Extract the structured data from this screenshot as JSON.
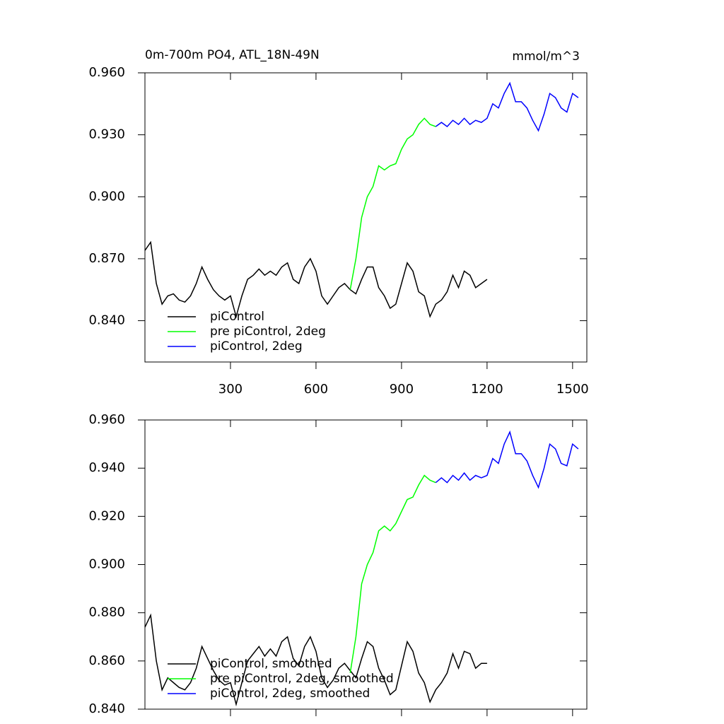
{
  "chart_data": [
    {
      "type": "line",
      "title": "0m-700m PO4, ATL_18N-49N",
      "units": "mmol/m^3",
      "xlim": [
        0,
        1550
      ],
      "xticks": [
        300,
        600,
        900,
        1200,
        1500
      ],
      "show_xtick_labels": true,
      "ylim": [
        0.82,
        0.96
      ],
      "yticks": [
        {
          "value": 0.84,
          "label": "0.840"
        },
        {
          "value": 0.87,
          "label": "0.870"
        },
        {
          "value": 0.9,
          "label": "0.900"
        },
        {
          "value": 0.93,
          "label": "0.930"
        },
        {
          "value": 0.96,
          "label": "0.960"
        }
      ],
      "legend": "lower left",
      "series": [
        {
          "name": "piControl",
          "color": "#000000",
          "x": [
            0,
            20,
            40,
            60,
            80,
            100,
            120,
            140,
            160,
            180,
            200,
            220,
            240,
            260,
            280,
            300,
            320,
            340,
            360,
            380,
            400,
            420,
            440,
            460,
            480,
            500,
            520,
            540,
            560,
            580,
            600,
            620,
            640,
            660,
            680,
            700,
            720,
            740,
            760,
            780,
            800,
            820,
            840,
            860,
            880,
            900,
            920,
            940,
            960,
            980,
            1000,
            1020,
            1040,
            1060,
            1080,
            1100,
            1120,
            1140,
            1160,
            1180,
            1200
          ],
          "values": [
            0.874,
            0.878,
            0.858,
            0.848,
            0.852,
            0.853,
            0.85,
            0.849,
            0.852,
            0.858,
            0.866,
            0.86,
            0.855,
            0.852,
            0.85,
            0.852,
            0.842,
            0.852,
            0.86,
            0.862,
            0.865,
            0.862,
            0.864,
            0.862,
            0.866,
            0.868,
            0.86,
            0.858,
            0.866,
            0.87,
            0.864,
            0.852,
            0.848,
            0.852,
            0.856,
            0.858,
            0.855,
            0.853,
            0.86,
            0.866,
            0.866,
            0.856,
            0.852,
            0.846,
            0.848,
            0.858,
            0.868,
            0.864,
            0.854,
            0.852,
            0.842,
            0.848,
            0.85,
            0.854,
            0.862,
            0.856,
            0.864,
            0.862,
            0.856,
            0.858,
            0.86
          ]
        },
        {
          "name": "pre piControl, 2deg",
          "color": "#00ff00",
          "x": [
            720,
            740,
            760,
            780,
            800,
            820,
            840,
            860,
            880,
            900,
            920,
            940,
            960,
            980,
            1000,
            1020
          ],
          "values": [
            0.855,
            0.87,
            0.89,
            0.9,
            0.905,
            0.915,
            0.913,
            0.915,
            0.916,
            0.923,
            0.928,
            0.93,
            0.935,
            0.938,
            0.935,
            0.934
          ]
        },
        {
          "name": "piControl, 2deg",
          "color": "#0000ff",
          "x": [
            1020,
            1040,
            1060,
            1080,
            1100,
            1120,
            1140,
            1160,
            1180,
            1200,
            1220,
            1240,
            1260,
            1280,
            1300,
            1320,
            1340,
            1360,
            1380,
            1400,
            1420,
            1440,
            1460,
            1480,
            1500,
            1520
          ],
          "values": [
            0.934,
            0.936,
            0.934,
            0.937,
            0.935,
            0.938,
            0.935,
            0.937,
            0.936,
            0.938,
            0.945,
            0.943,
            0.95,
            0.955,
            0.946,
            0.946,
            0.943,
            0.937,
            0.932,
            0.94,
            0.95,
            0.948,
            0.943,
            0.941,
            0.95,
            0.948
          ]
        }
      ]
    },
    {
      "type": "line",
      "xlim": [
        0,
        1550
      ],
      "xticks": [
        300,
        600,
        900,
        1200,
        1500
      ],
      "show_xtick_labels": false,
      "ylim": [
        0.84,
        0.96
      ],
      "yticks": [
        {
          "value": 0.84,
          "label": "0.840"
        },
        {
          "value": 0.86,
          "label": "0.860"
        },
        {
          "value": 0.88,
          "label": "0.880"
        },
        {
          "value": 0.9,
          "label": "0.900"
        },
        {
          "value": 0.92,
          "label": "0.920"
        },
        {
          "value": 0.94,
          "label": "0.940"
        },
        {
          "value": 0.96,
          "label": "0.960"
        }
      ],
      "legend": "lower left",
      "series": [
        {
          "name": "piControl, smoothed",
          "color": "#000000",
          "x": [
            0,
            20,
            40,
            60,
            80,
            100,
            120,
            140,
            160,
            180,
            200,
            220,
            240,
            260,
            280,
            300,
            320,
            340,
            360,
            380,
            400,
            420,
            440,
            460,
            480,
            500,
            520,
            540,
            560,
            580,
            600,
            620,
            640,
            660,
            680,
            700,
            720,
            740,
            760,
            780,
            800,
            820,
            840,
            860,
            880,
            900,
            920,
            940,
            960,
            980,
            1000,
            1020,
            1040,
            1060,
            1080,
            1100,
            1120,
            1140,
            1160,
            1180,
            1200
          ],
          "values": [
            0.874,
            0.879,
            0.86,
            0.848,
            0.853,
            0.851,
            0.849,
            0.848,
            0.851,
            0.857,
            0.866,
            0.861,
            0.856,
            0.852,
            0.85,
            0.851,
            0.842,
            0.851,
            0.86,
            0.863,
            0.866,
            0.862,
            0.865,
            0.862,
            0.868,
            0.87,
            0.861,
            0.858,
            0.866,
            0.87,
            0.864,
            0.853,
            0.849,
            0.852,
            0.857,
            0.859,
            0.856,
            0.853,
            0.861,
            0.868,
            0.866,
            0.857,
            0.852,
            0.846,
            0.848,
            0.858,
            0.868,
            0.864,
            0.855,
            0.851,
            0.843,
            0.848,
            0.851,
            0.855,
            0.863,
            0.857,
            0.864,
            0.863,
            0.857,
            0.859,
            0.859
          ]
        },
        {
          "name": "pre piControl, 2deg, smoothed",
          "color": "#00ff00",
          "x": [
            720,
            740,
            760,
            780,
            800,
            820,
            840,
            860,
            880,
            900,
            920,
            940,
            960,
            980,
            1000,
            1020
          ],
          "values": [
            0.855,
            0.87,
            0.892,
            0.9,
            0.905,
            0.914,
            0.916,
            0.914,
            0.917,
            0.922,
            0.927,
            0.928,
            0.933,
            0.937,
            0.935,
            0.934
          ]
        },
        {
          "name": "piControl, 2deg, smoothed",
          "color": "#0000ff",
          "x": [
            1020,
            1040,
            1060,
            1080,
            1100,
            1120,
            1140,
            1160,
            1180,
            1200,
            1220,
            1240,
            1260,
            1280,
            1300,
            1320,
            1340,
            1360,
            1380,
            1400,
            1420,
            1440,
            1460,
            1480,
            1500,
            1520
          ],
          "values": [
            0.934,
            0.936,
            0.934,
            0.937,
            0.935,
            0.938,
            0.935,
            0.937,
            0.936,
            0.937,
            0.944,
            0.942,
            0.95,
            0.955,
            0.946,
            0.946,
            0.943,
            0.937,
            0.932,
            0.94,
            0.95,
            0.948,
            0.942,
            0.941,
            0.95,
            0.948
          ]
        }
      ]
    }
  ]
}
